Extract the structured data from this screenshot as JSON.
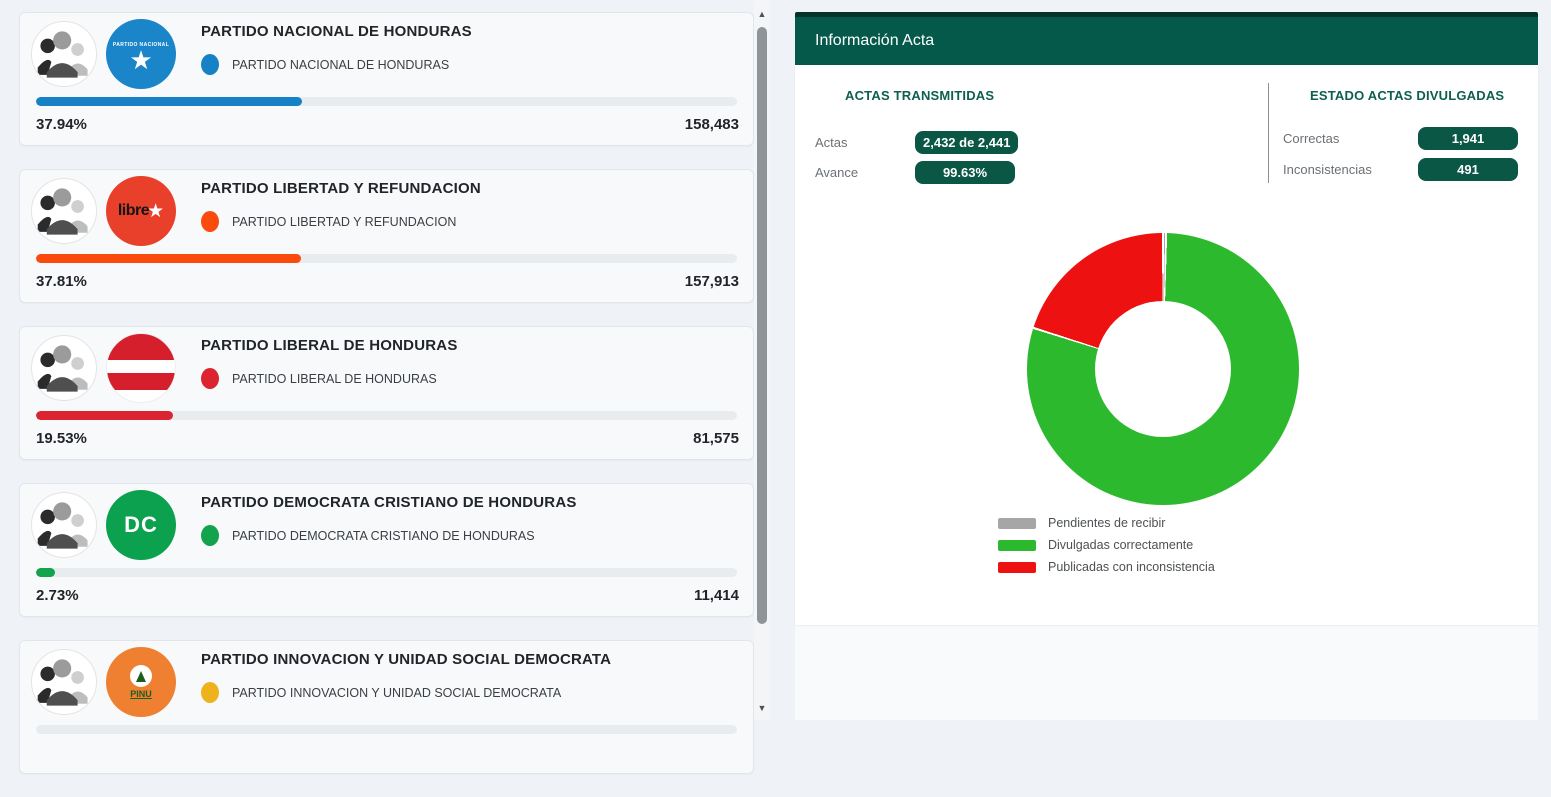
{
  "parties": [
    {
      "name": "PARTIDO NACIONAL DE HONDURAS",
      "legend_label": "PARTIDO NACIONAL DE HONDURAS",
      "logo_text": "PARTIDO NACIONAL",
      "percent": "37.94%",
      "percent_value": 37.94,
      "votes": "158,483",
      "color": "#1781c5"
    },
    {
      "name": "PARTIDO LIBERTAD Y REFUNDACION",
      "legend_label": "PARTIDO LIBERTAD Y REFUNDACION",
      "logo_text": "libre",
      "percent": "37.81%",
      "percent_value": 37.81,
      "votes": "157,913",
      "color": "#fa4a0e"
    },
    {
      "name": "PARTIDO LIBERAL DE HONDURAS",
      "legend_label": "PARTIDO LIBERAL DE HONDURAS",
      "logo_text": "",
      "percent": "19.53%",
      "percent_value": 19.53,
      "votes": "81,575",
      "color": "#dc2430"
    },
    {
      "name": "PARTIDO DEMOCRATA CRISTIANO DE HONDURAS",
      "legend_label": "PARTIDO DEMOCRATA CRISTIANO DE HONDURAS",
      "logo_text": "DC",
      "percent": "2.73%",
      "percent_value": 2.73,
      "votes": "11,414",
      "color": "#12a34c"
    },
    {
      "name": "PARTIDO INNOVACION Y UNIDAD SOCIAL DEMOCRATA",
      "legend_label": "PARTIDO INNOVACION Y UNIDAD SOCIAL DEMOCRATA",
      "logo_text": "PINU",
      "percent": "",
      "percent_value": null,
      "votes": "",
      "color": "#eeb31c"
    }
  ],
  "acta_panel": {
    "title": "Información Acta",
    "transmitidas": {
      "heading": "ACTAS TRANSMITIDAS",
      "rows": [
        {
          "label": "Actas",
          "value": "2,432 de 2,441"
        },
        {
          "label": "Avance",
          "value": "99.63%"
        }
      ]
    },
    "divulgadas": {
      "heading": "ESTADO ACTAS DIVULGADAS",
      "rows": [
        {
          "label": "Correctas",
          "value": "1,941"
        },
        {
          "label": "Inconsistencias",
          "value": "491"
        }
      ]
    },
    "badge_color": "#0b5746",
    "header_color": "#05594a"
  },
  "chart_data": [
    {
      "type": "pie",
      "donut": true,
      "labels": [
        "Pendientes de recibir",
        "Divulgadas correctamente",
        "Publicadas con inconsistencia"
      ],
      "values": [
        9,
        1941,
        491
      ],
      "colors": [
        "#a6a6a6",
        "#2db92d",
        "#ee1111"
      ],
      "legend_position": "bottom-left"
    },
    {
      "type": "bar",
      "orientation": "horizontal",
      "categories": [
        "PARTIDO NACIONAL DE HONDURAS",
        "PARTIDO LIBERTAD Y REFUNDACION",
        "PARTIDO LIBERAL DE HONDURAS",
        "PARTIDO DEMOCRATA CRISTIANO DE HONDURAS",
        "PARTIDO INNOVACION Y UNIDAD SOCIAL DEMOCRATA"
      ],
      "series": [
        {
          "name": "percent",
          "values": [
            37.94,
            37.81,
            19.53,
            2.73,
            null
          ]
        },
        {
          "name": "votes",
          "values": [
            158483,
            157913,
            81575,
            11414,
            null
          ]
        }
      ],
      "colors": [
        "#1781c5",
        "#fa4a0e",
        "#dc2430",
        "#12a34c",
        "#eeb31c"
      ],
      "xlim": [
        0,
        100
      ]
    }
  ]
}
